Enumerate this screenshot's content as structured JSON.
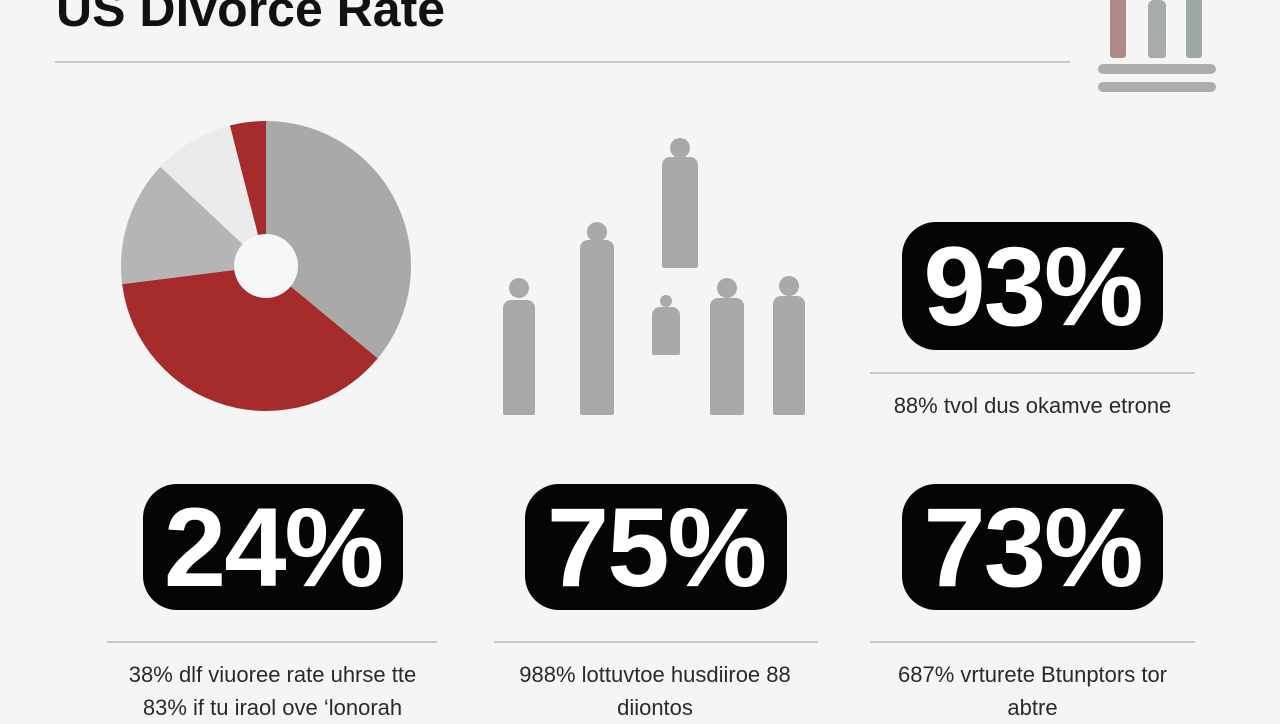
{
  "header": {
    "title": "US Divorce Rate"
  },
  "colors": {
    "red": "#a62b2b",
    "gray": "#a9aaa7",
    "light": "#ebebeb",
    "badge": "#050505"
  },
  "chart_data": {
    "type": "pie",
    "title": "",
    "slices": [
      {
        "value": 36,
        "color": "#a9aaa7"
      },
      {
        "value": 37,
        "color": "#a62b2b"
      },
      {
        "value": 14,
        "color": "#b5b5b5"
      },
      {
        "value": 9,
        "color": "#ebebeb"
      },
      {
        "value": 4,
        "color": "#a62b2b"
      }
    ],
    "donut": true
  },
  "icons": {
    "top": "people-podium-icon",
    "middle": "people-group-icon"
  },
  "stats": [
    {
      "value": "93%",
      "caption": [
        "88% tvol dus okamve etrone"
      ]
    },
    {
      "value": "24%",
      "caption": [
        "38% dlf viuoree rate uhrse tte",
        "83% if tu iraol ove ‘lonorah"
      ]
    },
    {
      "value": "75%",
      "caption": [
        "988% lottuvtoe husdiiroe 88",
        "diiontos"
      ]
    },
    {
      "value": "73%",
      "caption": [
        "687% vrturete Btunptors tor",
        "abtre"
      ]
    }
  ]
}
